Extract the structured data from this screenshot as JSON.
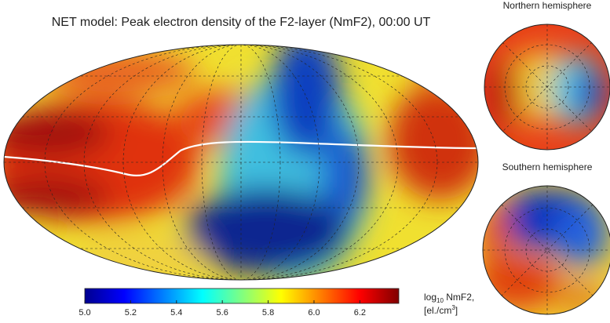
{
  "title": "NET model: Peak electron density of the F2-layer (NmF2), 00:00 UT",
  "insets": [
    {
      "title": "Northern hemisphere"
    },
    {
      "title": "Southern hemisphere"
    }
  ],
  "colorbar": {
    "lim": [
      5.0,
      6.37
    ],
    "ticks": [
      {
        "value": 5.0,
        "label": "5.0"
      },
      {
        "value": 5.2,
        "label": "5.2"
      },
      {
        "value": 5.4,
        "label": "5.4"
      },
      {
        "value": 5.6,
        "label": "5.6"
      },
      {
        "value": 5.8,
        "label": "5.8"
      },
      {
        "value": 6.0,
        "label": "6.0"
      },
      {
        "value": 6.2,
        "label": "6.2"
      }
    ],
    "colormap": [
      "#00008f",
      "#0000ff",
      "#0080ff",
      "#00ffff",
      "#80ff80",
      "#ffff00",
      "#ff8000",
      "#ff0000",
      "#800000"
    ],
    "label": {
      "prefix": "log",
      "sub": "10",
      "main": " NmF2,",
      "unit": "[el./cm",
      "sup": "3",
      "end": "]"
    }
  }
}
